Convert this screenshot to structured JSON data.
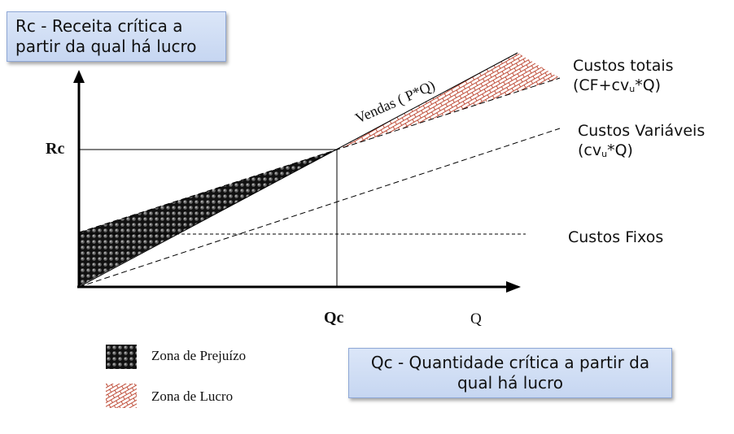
{
  "callouts": {
    "rc": "Rc - Receita crítica a partir da qual há lucro",
    "qc": "Qc - Quantidade crítica a partir da qual há lucro"
  },
  "lines": {
    "vendas": "Vendas ( P*Q)",
    "custos_totais": {
      "title": "Custos totais",
      "formula_start": "(CF+cv",
      "formula_sub": "u",
      "formula_end": "*Q)"
    },
    "custos_variaveis": {
      "title": "Custos Variáveis",
      "formula_start": "(cv",
      "formula_sub": "u",
      "formula_end": "*Q)"
    },
    "custos_fixos": "Custos Fixos"
  },
  "axes": {
    "y_mark": "Rc",
    "x_mark": "Qc",
    "x_label": "Q"
  },
  "legend": {
    "prejuizo": "Zona de Prejuízo",
    "lucro": "Zona de Lucro"
  },
  "colors": {
    "prejuizo_fill": "#1a1a1a",
    "lucro_fill": "#c0503c",
    "callout_bg": "#c9d8f2",
    "line": "#000000"
  }
}
